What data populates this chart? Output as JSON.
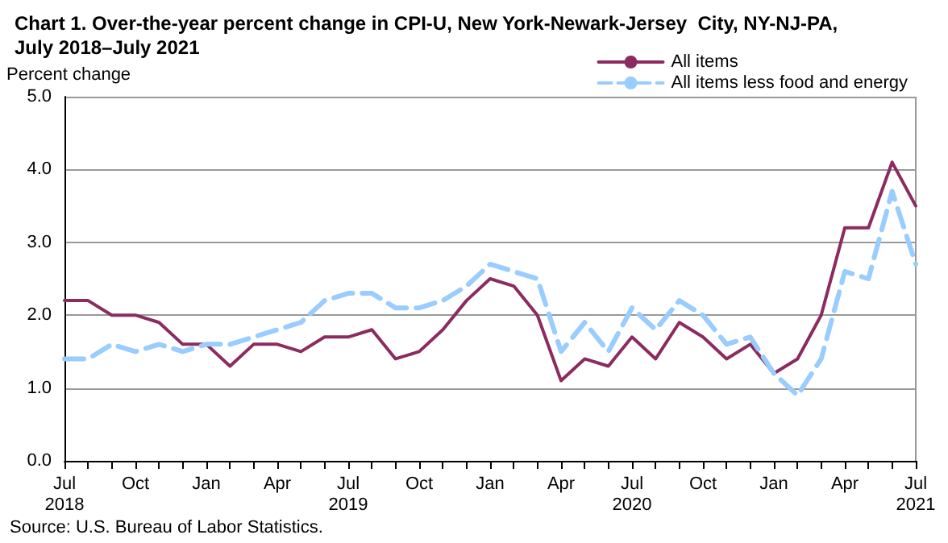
{
  "chart_data": {
    "type": "line",
    "title": "Chart 1. Over-the-year percent change in CPI-U, New York-Newark-Jersey  City, NY-NJ-PA,\nJuly 2018–July 2021",
    "ylabel": "Percent change",
    "categories": [
      "Jul\n2018",
      null,
      null,
      "Oct",
      null,
      null,
      "Jan",
      null,
      null,
      "Apr",
      null,
      null,
      "Jul\n2019",
      null,
      null,
      "Oct",
      null,
      null,
      "Jan",
      null,
      null,
      "Apr",
      null,
      null,
      "Jul\n2020",
      null,
      null,
      "Oct",
      null,
      null,
      "Jan",
      null,
      null,
      "Apr",
      null,
      null,
      "Jul\n2021"
    ],
    "series": [
      {
        "name": "All items",
        "color": "#8b2b5f",
        "line_style": "solid",
        "values": [
          2.2,
          2.2,
          2.0,
          2.0,
          1.9,
          1.6,
          1.6,
          1.3,
          1.6,
          1.6,
          1.5,
          1.7,
          1.7,
          1.8,
          1.4,
          1.5,
          1.8,
          2.2,
          2.5,
          2.4,
          2.0,
          1.1,
          1.4,
          1.3,
          1.7,
          1.4,
          1.9,
          1.7,
          1.4,
          1.6,
          1.2,
          1.4,
          2.0,
          3.2,
          3.2,
          4.1,
          3.5
        ]
      },
      {
        "name": "All items less food and energy",
        "color": "#99ccff",
        "line_style": "dashed",
        "values": [
          1.4,
          1.4,
          1.6,
          1.5,
          1.6,
          1.5,
          1.6,
          1.6,
          1.7,
          1.8,
          1.9,
          2.2,
          2.3,
          2.3,
          2.1,
          2.1,
          2.2,
          2.4,
          2.7,
          2.6,
          2.5,
          1.5,
          1.9,
          1.5,
          2.1,
          1.8,
          2.2,
          2.0,
          1.6,
          1.7,
          1.2,
          0.9,
          1.4,
          2.6,
          2.5,
          3.7,
          2.7
        ]
      }
    ],
    "ylim": [
      0,
      5
    ],
    "yticks": [
      {
        "value": 0,
        "label": "0.0"
      },
      {
        "value": 1,
        "label": "1.0"
      },
      {
        "value": 2,
        "label": "2.0"
      },
      {
        "value": 3,
        "label": "3.0"
      },
      {
        "value": 4,
        "label": "4.0"
      },
      {
        "value": 5,
        "label": "5.0"
      }
    ],
    "grid": "y",
    "legend": "top right",
    "marker": "none",
    "annotations": [
      "Source: U.S. Bureau of Labor Statistics."
    ]
  }
}
